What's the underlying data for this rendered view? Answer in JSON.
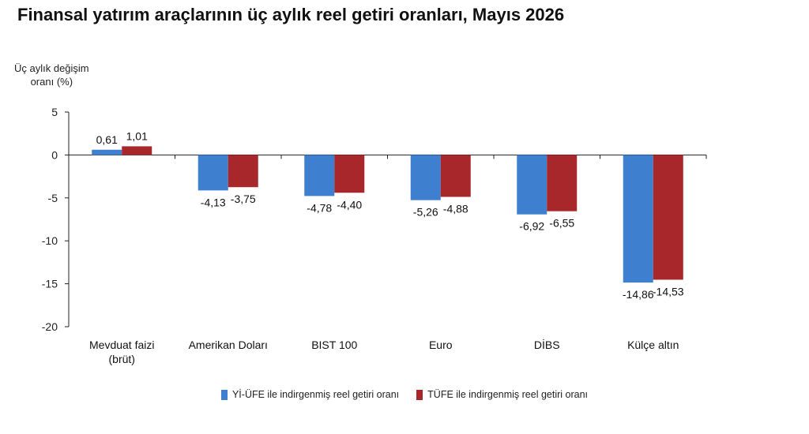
{
  "page": {
    "title": "Finansal yatırım araçlarının üç aylık reel getiri oranları, Mayıs 2026"
  },
  "chart_data": {
    "type": "bar",
    "title": "Finansal yatırım araçlarının üç aylık reel getiri oranları, Mayıs 2026",
    "ylabel_lines": [
      "Üç aylık değişim",
      "oranı (%)"
    ],
    "xlabel": "",
    "ylim": [
      -20,
      5
    ],
    "yticks": [
      5,
      0,
      -5,
      -10,
      -15,
      -20
    ],
    "grid": false,
    "legend_position": "bottom",
    "categories": [
      [
        "Mevduat faizi",
        "(brüt)"
      ],
      [
        "Amerikan Doları"
      ],
      [
        "BIST 100"
      ],
      [
        "Euro"
      ],
      [
        "DİBS"
      ],
      [
        "Külçe altın"
      ]
    ],
    "series": [
      {
        "name": "Yİ-ÜFE ile indirgenmiş reel getiri oranı",
        "color": "#3f7fcf",
        "values": [
          0.61,
          -4.13,
          -4.78,
          -5.26,
          -6.92,
          -14.86
        ],
        "labels": [
          "0,61",
          "-4,13",
          "-4,78",
          "-5,26",
          "-6,92",
          "-14,86"
        ]
      },
      {
        "name": "TÜFE ile indirgenmiş reel getiri oranı",
        "color": "#a8272a",
        "values": [
          1.01,
          -3.75,
          -4.4,
          -4.88,
          -6.55,
          -14.53
        ],
        "labels": [
          "1,01",
          "-3,75",
          "-4,40",
          "-4,88",
          "-6,55",
          "-14,53"
        ]
      }
    ]
  }
}
